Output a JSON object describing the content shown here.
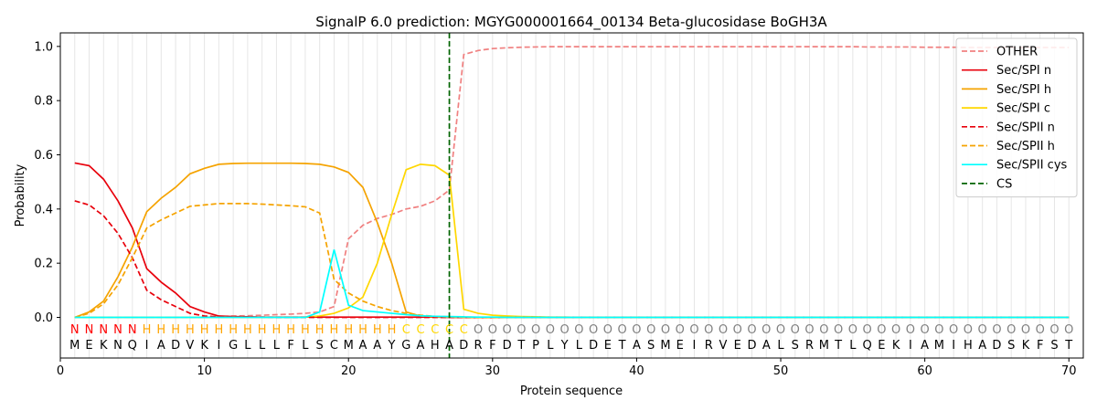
{
  "chart_data": {
    "type": "line",
    "title": "SignalP 6.0 prediction: MGYG000001664_00134 Beta-glucosidase BoGH3A",
    "xlabel": "Protein sequence",
    "ylabel": "Probability",
    "xlim": [
      0,
      71
    ],
    "ylim": [
      -0.15,
      1.05
    ],
    "xticks": [
      0,
      10,
      20,
      30,
      40,
      50,
      60,
      70
    ],
    "yticks": [
      0.0,
      0.2,
      0.4,
      0.6,
      0.8,
      1.0
    ],
    "grid": "vertical lines at each residue",
    "legend_position": "top-right",
    "cleavage_site": 27,
    "sequence": "MEKNQIADVKIGLLLFLSCMAAYGAHADRFDTPLYLDETASMEIRVEDALSRMTLQEKIAMIHADSKFST",
    "labels": "NNNNNHHHHHHHHHHHHHHHHHHCCCCCOOOOOOOOOOOOOOOOOOOOOOOOOOOOOOOOOOOOOOOOOOO",
    "label_colors": {
      "N": "#ff0000",
      "H": "#ffa500",
      "C": "#ffd700",
      "O": "#808080"
    },
    "x": [
      1,
      2,
      3,
      4,
      5,
      6,
      7,
      8,
      9,
      10,
      11,
      12,
      13,
      14,
      15,
      16,
      17,
      18,
      19,
      20,
      21,
      22,
      23,
      24,
      25,
      26,
      27,
      28,
      29,
      30,
      31,
      32,
      33,
      34,
      35,
      36,
      37,
      38,
      39,
      40,
      41,
      42,
      43,
      44,
      45,
      46,
      47,
      48,
      49,
      50,
      51,
      52,
      53,
      54,
      55,
      56,
      57,
      58,
      59,
      60,
      61,
      62,
      63,
      64,
      65,
      66,
      67,
      68,
      69,
      70
    ],
    "series": [
      {
        "name": "OTHER",
        "color": "#f08080",
        "dash": "dashed",
        "values": [
          0,
          0,
          0,
          0,
          0,
          0,
          0,
          0,
          0,
          0,
          0.003,
          0.005,
          0.006,
          0.008,
          0.01,
          0.012,
          0.015,
          0.02,
          0.04,
          0.29,
          0.34,
          0.365,
          0.38,
          0.4,
          0.41,
          0.43,
          0.47,
          0.97,
          0.985,
          0.992,
          0.995,
          0.997,
          0.998,
          0.999,
          0.999,
          0.999,
          0.999,
          0.999,
          0.999,
          0.999,
          0.999,
          0.999,
          0.999,
          0.999,
          0.999,
          0.999,
          0.999,
          0.999,
          0.999,
          0.999,
          0.999,
          0.999,
          0.999,
          0.999,
          0.999,
          0.998,
          0.998,
          0.998,
          0.998,
          0.997,
          0.997,
          0.997,
          0.996,
          0.996,
          0.996,
          0.996,
          0.996,
          0.996,
          0.996,
          0.996
        ]
      },
      {
        "name": "Sec/SPI n",
        "color": "#e8000b",
        "dash": "solid",
        "values": [
          0.57,
          0.56,
          0.51,
          0.43,
          0.33,
          0.18,
          0.13,
          0.09,
          0.04,
          0.02,
          0.005,
          0.003,
          0.002,
          0.001,
          0.001,
          0.001,
          0.001,
          0.001,
          0.001,
          0.001,
          0.001,
          0.001,
          0.001,
          0.001,
          0.001,
          0.001,
          0,
          0,
          0,
          0,
          0,
          0,
          0,
          0,
          0,
          0,
          0,
          0,
          0,
          0,
          0,
          0,
          0,
          0,
          0,
          0,
          0,
          0,
          0,
          0,
          0,
          0,
          0,
          0,
          0,
          0,
          0,
          0,
          0,
          0,
          0,
          0,
          0,
          0,
          0,
          0,
          0,
          0,
          0,
          0
        ]
      },
      {
        "name": "Sec/SPI h",
        "color": "#f5a300",
        "dash": "solid",
        "values": [
          0,
          0.02,
          0.06,
          0.15,
          0.26,
          0.39,
          0.44,
          0.48,
          0.53,
          0.55,
          0.565,
          0.568,
          0.569,
          0.569,
          0.569,
          0.569,
          0.568,
          0.565,
          0.555,
          0.535,
          0.48,
          0.35,
          0.2,
          0.02,
          0.005,
          0.002,
          0.001,
          0,
          0,
          0,
          0,
          0,
          0,
          0,
          0,
          0,
          0,
          0,
          0,
          0,
          0,
          0,
          0,
          0,
          0,
          0,
          0,
          0,
          0,
          0,
          0,
          0,
          0,
          0,
          0,
          0,
          0,
          0,
          0,
          0,
          0,
          0,
          0,
          0,
          0,
          0,
          0,
          0,
          0,
          0
        ]
      },
      {
        "name": "Sec/SPI c",
        "color": "#ffd700",
        "dash": "solid",
        "values": [
          0,
          0,
          0,
          0,
          0,
          0,
          0,
          0,
          0,
          0,
          0,
          0,
          0,
          0,
          0,
          0,
          0.001,
          0.005,
          0.015,
          0.035,
          0.075,
          0.2,
          0.38,
          0.545,
          0.565,
          0.56,
          0.525,
          0.03,
          0.015,
          0.008,
          0.005,
          0.003,
          0.002,
          0.001,
          0.001,
          0,
          0,
          0,
          0,
          0,
          0,
          0,
          0,
          0,
          0,
          0,
          0,
          0,
          0,
          0,
          0,
          0,
          0,
          0,
          0,
          0,
          0,
          0,
          0,
          0,
          0,
          0,
          0,
          0,
          0,
          0,
          0,
          0,
          0,
          0
        ]
      },
      {
        "name": "Sec/SPII n",
        "color": "#e8000b",
        "dash": "dashed",
        "values": [
          0.43,
          0.415,
          0.375,
          0.31,
          0.22,
          0.1,
          0.065,
          0.04,
          0.015,
          0.005,
          0.002,
          0.001,
          0.001,
          0.001,
          0,
          0,
          0,
          0,
          0,
          0,
          0,
          0,
          0,
          0,
          0,
          0,
          0,
          0,
          0,
          0,
          0,
          0,
          0,
          0,
          0,
          0,
          0,
          0,
          0,
          0,
          0,
          0,
          0,
          0,
          0,
          0,
          0,
          0,
          0,
          0,
          0,
          0,
          0,
          0,
          0,
          0,
          0,
          0,
          0,
          0,
          0,
          0,
          0,
          0,
          0,
          0,
          0,
          0,
          0,
          0
        ]
      },
      {
        "name": "Sec/SPII h",
        "color": "#f5a300",
        "dash": "dashed",
        "values": [
          0,
          0.015,
          0.05,
          0.12,
          0.22,
          0.33,
          0.36,
          0.385,
          0.41,
          0.415,
          0.42,
          0.42,
          0.42,
          0.418,
          0.415,
          0.412,
          0.408,
          0.385,
          0.14,
          0.09,
          0.06,
          0.04,
          0.025,
          0.015,
          0.008,
          0.004,
          0.002,
          0.001,
          0,
          0,
          0,
          0,
          0,
          0,
          0,
          0,
          0,
          0,
          0,
          0,
          0,
          0,
          0,
          0,
          0,
          0,
          0,
          0,
          0,
          0,
          0,
          0,
          0,
          0,
          0,
          0,
          0,
          0,
          0,
          0,
          0,
          0,
          0,
          0,
          0,
          0,
          0,
          0,
          0,
          0
        ]
      },
      {
        "name": "Sec/SPII cys",
        "color": "#00ffff",
        "dash": "solid",
        "values": [
          0,
          0,
          0,
          0,
          0,
          0,
          0,
          0,
          0,
          0,
          0,
          0,
          0,
          0,
          0,
          0,
          0,
          0.02,
          0.25,
          0.045,
          0.025,
          0.02,
          0.015,
          0.01,
          0.006,
          0.004,
          0.003,
          0.002,
          0.001,
          0.001,
          0,
          0,
          0,
          0,
          0,
          0,
          0,
          0,
          0,
          0,
          0,
          0,
          0,
          0,
          0,
          0,
          0,
          0,
          0,
          0,
          0,
          0,
          0,
          0,
          0,
          0,
          0,
          0,
          0,
          0,
          0,
          0,
          0,
          0,
          0,
          0,
          0,
          0,
          0,
          0
        ]
      }
    ],
    "cs_legend": {
      "name": "CS",
      "color": "#006400"
    }
  }
}
